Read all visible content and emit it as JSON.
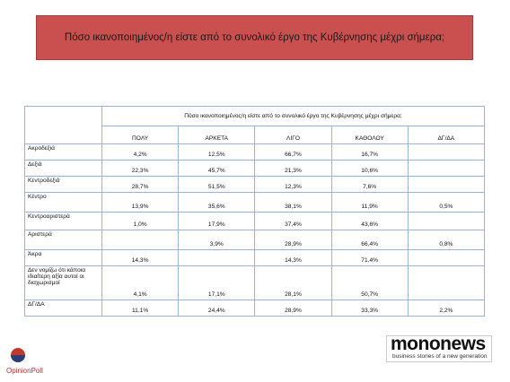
{
  "title": "Πόσο ικανοποιημένος/η είστε από το συνολικό έργο της Κυβέρνησης μέχρι σήμερα;",
  "table": {
    "question": "Πόσο ικανοποιημένος/η είστε από το συνολικό έργο της Κυβέρνησης μέχρι σήμερα;",
    "columns": [
      "ΠΟΛΥ",
      "ΑΡΚΕΤΑ",
      "ΛΙΓΟ",
      "ΚΑΘΟΛΟΥ",
      "ΔΓ/ΔΑ"
    ],
    "rows": [
      {
        "label": "Ακροδεξιά",
        "cells": [
          "4,2%",
          "12,5%",
          "66,7%",
          "16,7%",
          null
        ]
      },
      {
        "label": "Δεξιά",
        "cells": [
          "22,3%",
          "45,7%",
          "21,3%",
          "10,6%",
          null
        ]
      },
      {
        "label": "Κεντροδεξιά",
        "cells": [
          "28,7%",
          "51,5%",
          "12,3%",
          "7,6%",
          null
        ]
      },
      {
        "label": "Κέντρο",
        "cells": [
          "13,9%",
          "35,6%",
          "38,1%",
          "11,9%",
          "0,5%"
        ]
      },
      {
        "label": "Κεντροαριστερά",
        "cells": [
          "1,0%",
          "17,9%",
          "37,4%",
          "43,6%",
          null
        ]
      },
      {
        "label": "Αριστερά",
        "cells": [
          null,
          "3,9%",
          "28,9%",
          "66,4%",
          "0,8%"
        ]
      },
      {
        "label": "Άκρα",
        "cells": [
          "14,3%",
          null,
          "14,3%",
          "71,4%",
          null
        ]
      },
      {
        "label": "Δεν νομίζω ότι κάποια ιδιαίτερη αξία αυτοί οι διαχωρισμοί",
        "cells": [
          "4,1%",
          "17,1%",
          "28,1%",
          "50,7%",
          null
        ]
      },
      {
        "label": "ΔΓ/ΔΑ",
        "cells": [
          "11,1%",
          "24,4%",
          "28,9%",
          "33,3%",
          "2,2%"
        ]
      }
    ]
  },
  "logos": {
    "opinion_poll": "OpinionPoll",
    "mononews": "mononews",
    "mononews_tagline": "business stories of a new generation"
  }
}
